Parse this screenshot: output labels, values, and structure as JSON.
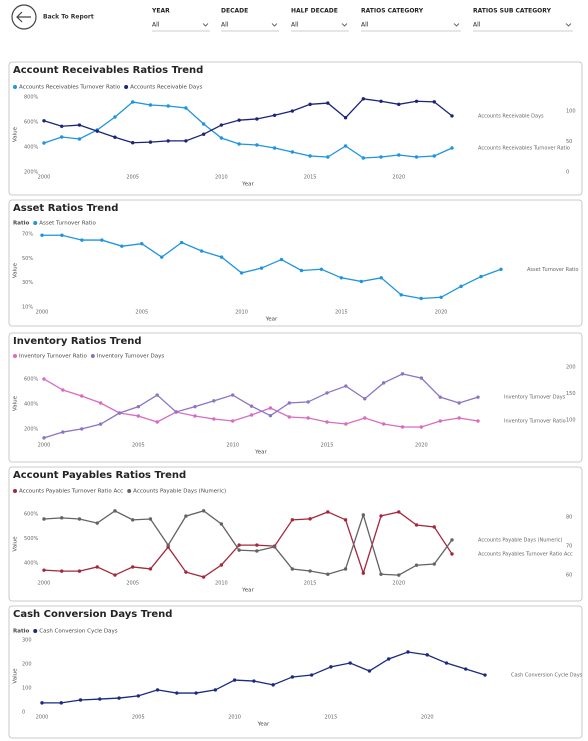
{
  "header": {
    "back_label": "Back To Report"
  },
  "filters": [
    {
      "label": "YEAR",
      "value": "All"
    },
    {
      "label": "DECADE",
      "value": "All"
    },
    {
      "label": "HALF DECADE",
      "value": "All"
    },
    {
      "label": "RATIOS CATEGORY",
      "value": "All"
    },
    {
      "label": "RATIOS SUB CATEGORY",
      "value": "All"
    }
  ],
  "chart_data": [
    {
      "type": "line",
      "title": "Account Receivables Ratios Trend",
      "x": [
        2000,
        2001,
        2002,
        2003,
        2004,
        2005,
        2006,
        2007,
        2008,
        2009,
        2010,
        2011,
        2012,
        2013,
        2014,
        2015,
        2016,
        2017,
        2018,
        2019,
        2020,
        2021,
        2022,
        2023
      ],
      "xlim": [
        2000,
        2023
      ],
      "xticks": [
        2000,
        2005,
        2010,
        2015,
        2020
      ],
      "ylim": [
        200,
        800
      ],
      "yticks": [
        {
          "value": 200,
          "label": "200%"
        },
        {
          "value": 400,
          "label": "400%"
        },
        {
          "value": 600,
          "label": "600%"
        },
        {
          "value": 800,
          "label": "800%"
        }
      ],
      "y2lim": [
        0,
        123
      ],
      "y2ticks": [
        0,
        50,
        100
      ],
      "x_label": "Year",
      "y_label": "Value",
      "series": [
        {
          "name": "Accounts Receivables Turnover Ratio",
          "color": "#1f94e0",
          "values": [
            432,
            480,
            464,
            536,
            640,
            760,
            736,
            728,
            712,
            584,
            472,
            424,
            416,
            392,
            360,
            328,
            320,
            408,
            312,
            320,
            336,
            320,
            328,
            392
          ]
        },
        {
          "name": "Accounts Receivable Days",
          "color": "#1b2478",
          "axis": "y2",
          "values": [
            84,
            75,
            77,
            67,
            57,
            48,
            49,
            51,
            51,
            62,
            77,
            85,
            87,
            93,
            100,
            111,
            113,
            89,
            120,
            116,
            111,
            116,
            115,
            92
          ]
        }
      ]
    },
    {
      "type": "line",
      "title": "Asset Ratios Trend",
      "legend_title": "Ratio",
      "x": [
        2000,
        2001,
        2002,
        2003,
        2004,
        2005,
        2006,
        2007,
        2008,
        2009,
        2010,
        2011,
        2012,
        2013,
        2014,
        2015,
        2016,
        2017,
        2018,
        2019,
        2020,
        2021,
        2022,
        2023
      ],
      "xlim": [
        2000,
        2023
      ],
      "xticks": [
        2000,
        2005,
        2010,
        2015,
        2020
      ],
      "ylim": [
        10,
        70
      ],
      "yticks": [
        {
          "value": 10,
          "label": "10%"
        },
        {
          "value": 30,
          "label": "30%"
        },
        {
          "value": 50,
          "label": "50%"
        },
        {
          "value": 70,
          "label": "70%"
        }
      ],
      "x_label": "Year",
      "y_label": "Value",
      "series": [
        {
          "name": "Asset Turnover Ratio",
          "color": "#1f94e0",
          "values": [
            69,
            69,
            65,
            65,
            60,
            62,
            51,
            63,
            56,
            51,
            38,
            42,
            49,
            40,
            41,
            34,
            31,
            34,
            20,
            17,
            18,
            27,
            35,
            41
          ]
        }
      ]
    },
    {
      "type": "line",
      "title": "Inventory Ratios Trend",
      "x": [
        2000,
        2001,
        2002,
        2003,
        2004,
        2005,
        2006,
        2007,
        2008,
        2009,
        2010,
        2011,
        2012,
        2013,
        2014,
        2015,
        2016,
        2017,
        2018,
        2019,
        2020,
        2021,
        2022,
        2023
      ],
      "xlim": [
        2000,
        2023
      ],
      "xticks": [
        2000,
        2005,
        2010,
        2015,
        2020
      ],
      "ylim": [
        112,
        696
      ],
      "yticks": [
        {
          "value": 200,
          "label": "200%"
        },
        {
          "value": 400,
          "label": "400%"
        },
        {
          "value": 600,
          "label": "600%"
        }
      ],
      "y2lim": [
        62,
        200
      ],
      "y2ticks": [
        100,
        150,
        200
      ],
      "x_label": "Year",
      "y_label": "Value",
      "series": [
        {
          "name": "Inventory Turnover Ratio",
          "color": "#d86cc2",
          "values": [
            600,
            512,
            464,
            408,
            328,
            304,
            256,
            336,
            304,
            280,
            264,
            312,
            368,
            296,
            288,
            256,
            240,
            288,
            240,
            216,
            216,
            264,
            288,
            264
          ]
        },
        {
          "name": "Inventory Turnover Days",
          "color": "#8a74c4",
          "axis": "y2",
          "values": [
            66,
            77,
            83,
            92,
            113,
            125,
            147,
            115,
            125,
            136,
            147,
            126,
            108,
            132,
            134,
            151,
            164,
            140,
            170,
            187,
            179,
            143,
            132,
            143
          ]
        }
      ]
    },
    {
      "type": "line",
      "title": "Account Payables Ratios Trend",
      "x": [
        2000,
        2001,
        2002,
        2003,
        2004,
        2005,
        2006,
        2007,
        2008,
        2009,
        2010,
        2011,
        2012,
        2013,
        2014,
        2015,
        2016,
        2017,
        2018,
        2019,
        2020,
        2021,
        2022,
        2023
      ],
      "xlim": [
        2000,
        2023
      ],
      "xticks": [
        2000,
        2005,
        2010,
        2015,
        2020
      ],
      "ylim": [
        339,
        616
      ],
      "yticks": [
        {
          "value": 400,
          "label": "400%"
        },
        {
          "value": 500,
          "label": "500%"
        },
        {
          "value": 600,
          "label": "600%"
        }
      ],
      "y2lim": [
        59,
        82.4
      ],
      "y2ticks": [
        60,
        70,
        80
      ],
      "x_label": "Year",
      "y_label": "Value",
      "series": [
        {
          "name": "Accounts Payables Turnover Ratio Acc",
          "color": "#a3283c",
          "values": [
            371,
            367,
            367,
            384,
            351,
            384,
            376,
            465,
            363,
            343,
            392,
            473,
            473,
            469,
            576,
            580,
            608,
            576,
            359,
            592,
            608,
            555,
            547,
            437
          ]
        },
        {
          "name": "Accounts Payable Days (Numeric)",
          "color": "#636363",
          "axis": "y2",
          "values": [
            79.3,
            79.7,
            79.3,
            77.9,
            82.1,
            79.0,
            79.3,
            70.3,
            80.3,
            82.1,
            77.6,
            68.6,
            68.3,
            69.7,
            62.1,
            61.4,
            60.3,
            62.1,
            80.7,
            60.3,
            60.0,
            63.4,
            63.8,
            72.1
          ]
        }
      ]
    },
    {
      "type": "line",
      "title": "Cash Conversion Days Trend",
      "legend_title": "Ratio",
      "x": [
        2000,
        2001,
        2002,
        2003,
        2004,
        2005,
        2006,
        2007,
        2008,
        2009,
        2010,
        2011,
        2012,
        2013,
        2014,
        2015,
        2016,
        2017,
        2018,
        2019,
        2020,
        2021,
        2022,
        2023
      ],
      "xlim": [
        2000,
        2023
      ],
      "xticks": [
        2000,
        2005,
        2010,
        2015,
        2020
      ],
      "ylim": [
        0,
        300
      ],
      "yticks": [
        0,
        100,
        200,
        300
      ],
      "x_label": "Year",
      "y_label": "Value",
      "series": [
        {
          "name": "Cash Conversion Cycle Days",
          "color": "#1b2a80",
          "values": [
            38,
            38,
            50,
            54,
            58,
            67,
            92,
            79,
            79,
            92,
            133,
            129,
            113,
            146,
            154,
            188,
            204,
            171,
            221,
            250,
            238,
            204,
            179,
            154
          ]
        }
      ]
    }
  ]
}
